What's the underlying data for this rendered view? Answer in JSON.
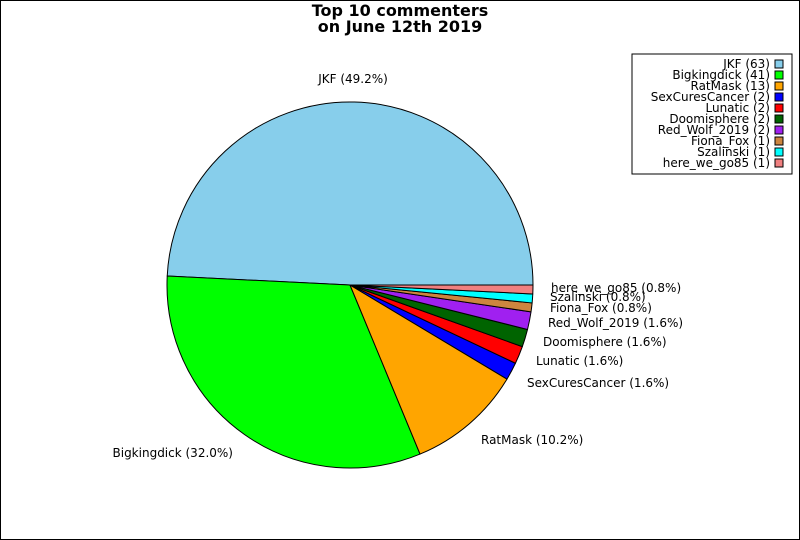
{
  "chart_data": {
    "type": "pie",
    "title": [
      "Top 10 commenters",
      "on June 12th 2019"
    ],
    "legend_placement": "top-right",
    "slices": [
      {
        "name": "JKF",
        "value": 63,
        "pct": 49.2,
        "color": "#87ceeb"
      },
      {
        "name": "Bigkingdick",
        "value": 41,
        "pct": 32.0,
        "color": "#00ff00"
      },
      {
        "name": "RatMask",
        "value": 13,
        "pct": 10.2,
        "color": "#ffa500"
      },
      {
        "name": "SexCuresCancer",
        "value": 2,
        "pct": 1.6,
        "color": "#0000ff"
      },
      {
        "name": "Lunatic",
        "value": 2,
        "pct": 1.6,
        "color": "#ff0000"
      },
      {
        "name": "Doomisphere",
        "value": 2,
        "pct": 1.6,
        "color": "#006400"
      },
      {
        "name": "Red_Wolf_2019",
        "value": 2,
        "pct": 1.6,
        "color": "#a020f0"
      },
      {
        "name": "Fiona_Fox",
        "value": 1,
        "pct": 0.8,
        "color": "#cd853f"
      },
      {
        "name": "Szalinski",
        "value": 1,
        "pct": 0.8,
        "color": "#00ffff"
      },
      {
        "name": "here_we_go85",
        "value": 1,
        "pct": 0.8,
        "color": "#f08080"
      }
    ],
    "slice_labels": [
      "JKF (49.2%)",
      "Bigkingdick (32.0%)",
      "RatMask (10.2%)",
      "SexCuresCancer (1.6%)",
      "Lunatic (1.6%)",
      "Doomisphere (1.6%)",
      "Red_Wolf_2019 (1.6%)",
      "Fiona_Fox (0.8%)",
      "Szalinski (0.8%)",
      "here_we_go85 (0.8%)"
    ],
    "legend_entries": [
      "JKF (63)",
      "Bigkingdick (41)",
      "RatMask (13)",
      "SexCuresCancer (2)",
      "Lunatic (2)",
      "Doomisphere (2)",
      "Red_Wolf_2019 (2)",
      "Fiona_Fox (1)",
      "Szalinski (1)",
      "here_we_go85 (1)"
    ]
  }
}
